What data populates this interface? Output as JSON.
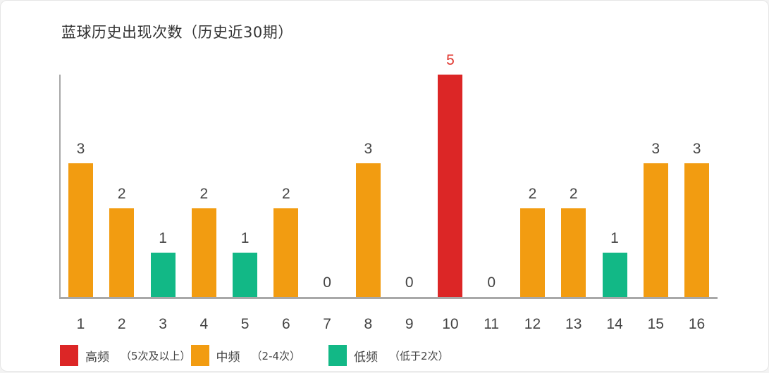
{
  "chart_data": {
    "type": "bar",
    "title": "蓝球历史出现次数（历史近30期）",
    "xlabel": "",
    "ylabel": "",
    "categories": [
      "1",
      "2",
      "3",
      "4",
      "5",
      "6",
      "7",
      "8",
      "9",
      "10",
      "11",
      "12",
      "13",
      "14",
      "15",
      "16"
    ],
    "values": [
      3,
      2,
      1,
      2,
      1,
      2,
      0,
      3,
      0,
      5,
      0,
      2,
      2,
      1,
      3,
      3
    ],
    "ylim": [
      0,
      5
    ],
    "grid": false,
    "legend_position": "bottom",
    "legend": [
      {
        "label": "高频",
        "note": "（5次及以上）",
        "color": "#dc2626"
      },
      {
        "label": "中频",
        "note": "（2-4次）",
        "color": "#f29c11"
      },
      {
        "label": "低频",
        "note": "（低于2次）",
        "color": "#12b886"
      }
    ],
    "thresholds": {
      "high_min": 5,
      "mid_min": 2
    }
  },
  "colors": {
    "high": "#dc2626",
    "mid": "#f29c11",
    "low": "#12b886",
    "high_label": "#e0362e",
    "label": "#444444"
  }
}
